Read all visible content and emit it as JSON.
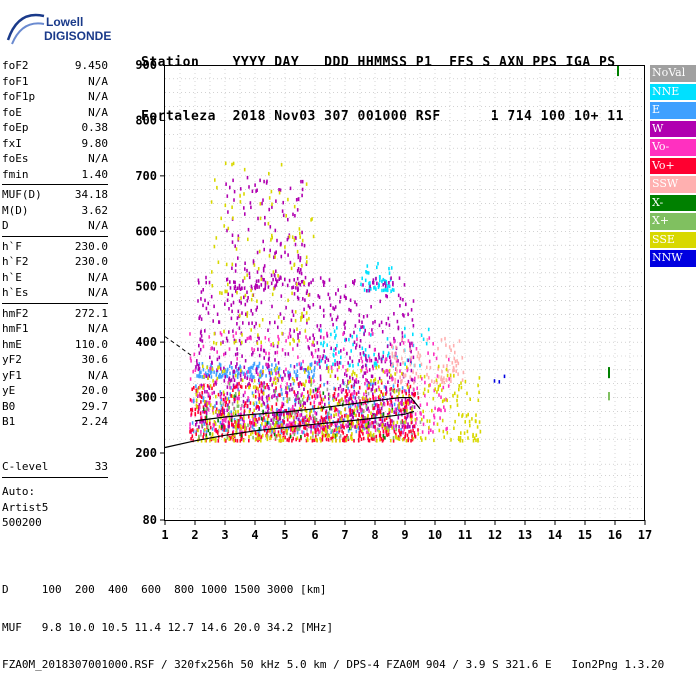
{
  "logo": {
    "line1": "Lowell",
    "line2": "DIGISONDE"
  },
  "header": {
    "line1": "Station    YYYY DAY   DDD HHMMSS P1  FFS S AXN PPS IGA PS",
    "line2": "Fortaleza  2018 Nov03 307 001000 RSF      1 714 100 10+ 11"
  },
  "params": [
    [
      {
        "name": "foF2",
        "value": "9.450"
      },
      {
        "name": "foF1",
        "value": "N/A"
      },
      {
        "name": "foF1p",
        "value": "N/A"
      },
      {
        "name": "foE",
        "value": "N/A"
      },
      {
        "name": "foEp",
        "value": "0.38"
      },
      {
        "name": "fxI",
        "value": "9.80"
      },
      {
        "name": "foEs",
        "value": "N/A"
      },
      {
        "name": "fmin",
        "value": "1.40"
      }
    ],
    [
      {
        "name": "MUF(D)",
        "value": "34.18"
      },
      {
        "name": "M(D)",
        "value": "3.62"
      },
      {
        "name": "D",
        "value": "N/A"
      }
    ],
    [
      {
        "name": "h`F",
        "value": "230.0"
      },
      {
        "name": "h`F2",
        "value": "230.0"
      },
      {
        "name": "h`E",
        "value": "N/A"
      },
      {
        "name": "h`Es",
        "value": "N/A"
      }
    ],
    [
      {
        "name": "hmF2",
        "value": "272.1"
      },
      {
        "name": "hmF1",
        "value": "N/A"
      },
      {
        "name": "hmE",
        "value": "110.0"
      },
      {
        "name": "yF2",
        "value": "30.6"
      },
      {
        "name": "yF1",
        "value": "N/A"
      },
      {
        "name": "yE",
        "value": "20.0"
      },
      {
        "name": "B0",
        "value": "29.7"
      },
      {
        "name": "B1",
        "value": "2.24"
      }
    ]
  ],
  "clevel": {
    "name": "C-level",
    "value": "33"
  },
  "auto": [
    "Auto:",
    "Artist5",
    "500200"
  ],
  "footer": {
    "line1": "D     100  200  400  600  800 1000 1500 3000 [km]",
    "line2": "MUF   9.8 10.0 10.5 11.4 12.7 14.6 20.0 34.2 [MHz]",
    "line3": "FZA0M_2018307001000.RSF / 320fx256h 50 kHz 5.0 km / DPS-4 FZA0M 904 / 3.9 S 321.6 E   Ion2Png 1.3.20"
  },
  "legend": [
    {
      "label": "NoVal",
      "color": "#a0a0a0"
    },
    {
      "label": "NNE",
      "color": "#00e0ff"
    },
    {
      "label": "E",
      "color": "#3fa0ff"
    },
    {
      "label": "W",
      "color": "#b000b0"
    },
    {
      "label": "Vo-",
      "color": "#ff30c0"
    },
    {
      "label": "Vo+",
      "color": "#ff0030"
    },
    {
      "label": "SSW",
      "color": "#ffb0b0"
    },
    {
      "label": "X-",
      "color": "#008000"
    },
    {
      "label": "X+",
      "color": "#80c060"
    },
    {
      "label": "SSE",
      "color": "#d8d800"
    },
    {
      "label": "NNW",
      "color": "#0000e0"
    }
  ],
  "chart_data": {
    "type": "scatter",
    "xticks": [
      "1",
      "2",
      "3",
      "4",
      "5",
      "6",
      "7",
      "8",
      "9",
      "10",
      "11",
      "12",
      "13",
      "14",
      "15",
      "16",
      "17"
    ],
    "yticks": [
      "900",
      "800",
      "700",
      "600",
      "500",
      "400",
      "300",
      "200",
      "80"
    ],
    "xlim": [
      1,
      17
    ],
    "ylim": [
      80,
      900
    ],
    "grid": true,
    "legend_position": "right",
    "traces": [
      {
        "name": "F-trace",
        "color": "#000000",
        "points": [
          [
            1.0,
            210
          ],
          [
            2.0,
            222
          ],
          [
            3.0,
            232
          ],
          [
            4.0,
            240
          ],
          [
            5.0,
            246
          ],
          [
            6.0,
            252
          ],
          [
            7.0,
            257
          ],
          [
            8.0,
            263
          ],
          [
            9.0,
            270
          ],
          [
            9.3,
            275
          ]
        ]
      },
      {
        "name": "profile",
        "color": "#000000",
        "points": [
          [
            2.0,
            258
          ],
          [
            3.0,
            265
          ],
          [
            4.0,
            270
          ],
          [
            5.0,
            274
          ],
          [
            6.0,
            280
          ],
          [
            7.0,
            287
          ],
          [
            8.0,
            294
          ],
          [
            8.8,
            300
          ],
          [
            9.2,
            300
          ],
          [
            9.5,
            280
          ]
        ]
      }
    ],
    "clusters": [
      {
        "color": "#a0a0a0",
        "x": [
          2.0,
          9.5
        ],
        "y": [
          230,
          320
        ],
        "n": 80
      },
      {
        "color": "#00e0ff",
        "x": [
          7.5,
          8.6
        ],
        "y": [
          495,
          545
        ],
        "n": 50
      },
      {
        "color": "#00e0ff",
        "x": [
          6.0,
          9.8
        ],
        "y": [
          360,
          430
        ],
        "n": 80
      },
      {
        "color": "#3fa0ff",
        "x": [
          2.0,
          6.0
        ],
        "y": [
          340,
          365
        ],
        "n": 150
      },
      {
        "color": "#3fa0ff",
        "x": [
          1.8,
          9.0
        ],
        "y": [
          240,
          330
        ],
        "n": 220
      },
      {
        "color": "#b000b0",
        "x": [
          2.0,
          9.3
        ],
        "y": [
          250,
          520
        ],
        "n": 900
      },
      {
        "color": "#b000b0",
        "x": [
          3.0,
          5.8
        ],
        "y": [
          500,
          700
        ],
        "n": 160
      },
      {
        "color": "#ff30c0",
        "x": [
          1.8,
          10.5
        ],
        "y": [
          240,
          420
        ],
        "n": 380
      },
      {
        "color": "#ff0030",
        "x": [
          1.8,
          9.5
        ],
        "y": [
          225,
          330
        ],
        "n": 480
      },
      {
        "color": "#ffb0b0",
        "x": [
          8.5,
          11.0
        ],
        "y": [
          330,
          410
        ],
        "n": 90
      },
      {
        "color": "#008000",
        "x": [
          2.0,
          9.0
        ],
        "y": [
          230,
          320
        ],
        "n": 40
      },
      {
        "color": "#80c060",
        "x": [
          2.0,
          9.0
        ],
        "y": [
          230,
          330
        ],
        "n": 70
      },
      {
        "color": "#d8d800",
        "x": [
          2.0,
          11.5
        ],
        "y": [
          225,
          360
        ],
        "n": 420
      },
      {
        "color": "#d8d800",
        "x": [
          2.5,
          6.0
        ],
        "y": [
          400,
          730
        ],
        "n": 130
      },
      {
        "color": "#0000e0",
        "x": [
          11.8,
          12.6
        ],
        "y": [
          330,
          345
        ],
        "n": 3
      }
    ],
    "marks": [
      {
        "color": "#008000",
        "x": 16.1,
        "y": [
          880,
          900
        ]
      },
      {
        "color": "#008000",
        "x": 15.8,
        "y": [
          335,
          355
        ]
      },
      {
        "color": "#80c060",
        "x": 15.8,
        "y": [
          295,
          310
        ]
      }
    ]
  }
}
